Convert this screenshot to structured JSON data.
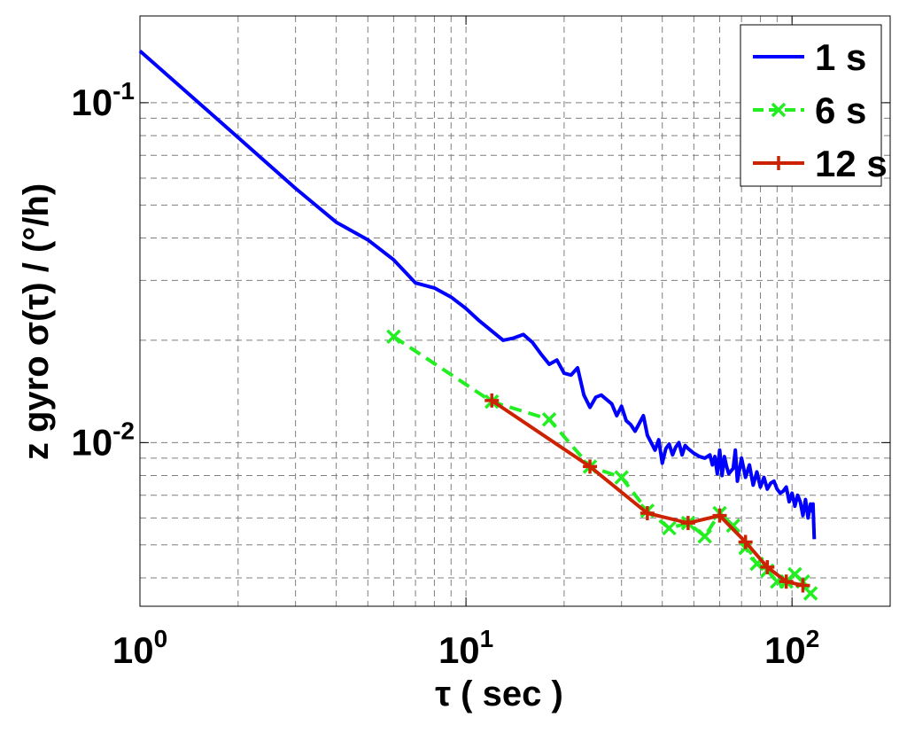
{
  "chart_data": {
    "type": "line",
    "xlabel": "τ ( sec )",
    "ylabel": "z gyro σ(τ) / (°/h)",
    "x_scale": "log",
    "y_scale": "log",
    "xlim": [
      1,
      200
    ],
    "ylim": [
      0.0033,
      0.18
    ],
    "grid": true,
    "grid_style": "dashed",
    "legend_position": "top-right",
    "x_ticks": [
      {
        "base": "10",
        "exp": "0",
        "value": 1
      },
      {
        "base": "10",
        "exp": "1",
        "value": 10
      },
      {
        "base": "10",
        "exp": "2",
        "value": 100
      }
    ],
    "y_ticks": [
      {
        "base": "10",
        "exp": "-2",
        "value": 0.01
      },
      {
        "base": "10",
        "exp": "-1",
        "value": 0.1
      }
    ],
    "series": [
      {
        "name": "1 s",
        "color": "#0000ff",
        "style": "solid",
        "marker": "none",
        "points": [
          [
            1,
            0.142
          ],
          [
            2,
            0.079
          ],
          [
            3,
            0.056
          ],
          [
            4,
            0.0445
          ],
          [
            5,
            0.0395
          ],
          [
            6,
            0.0345
          ],
          [
            7,
            0.0295
          ],
          [
            8,
            0.0285
          ],
          [
            9,
            0.0268
          ],
          [
            10,
            0.0248
          ],
          [
            11,
            0.0228
          ],
          [
            12,
            0.0213
          ],
          [
            13,
            0.02
          ],
          [
            14,
            0.0203
          ],
          [
            15,
            0.0208
          ],
          [
            16,
            0.0197
          ],
          [
            17,
            0.0182
          ],
          [
            18,
            0.017
          ],
          [
            19,
            0.0175
          ],
          [
            20,
            0.016
          ],
          [
            21,
            0.0158
          ],
          [
            22,
            0.0166
          ],
          [
            23,
            0.0138
          ],
          [
            24,
            0.0127
          ],
          [
            25,
            0.0136
          ],
          [
            26,
            0.0138
          ],
          [
            28,
            0.013
          ],
          [
            29,
            0.012
          ],
          [
            30,
            0.0128
          ],
          [
            31,
            0.0116
          ],
          [
            32,
            0.0113
          ],
          [
            33,
            0.0108
          ],
          [
            35,
            0.012
          ],
          [
            36,
            0.0105
          ],
          [
            37,
            0.01
          ],
          [
            38,
            0.0095
          ],
          [
            39,
            0.0102
          ],
          [
            40,
            0.0087
          ],
          [
            41,
            0.0096
          ],
          [
            42,
            0.0099
          ],
          [
            43,
            0.0092
          ],
          [
            44,
            0.0097
          ],
          [
            45,
            0.01
          ],
          [
            46,
            0.0092
          ],
          [
            47,
            0.0098
          ],
          [
            48,
            0.0096
          ],
          [
            50,
            0.0093
          ],
          [
            52,
            0.0091
          ],
          [
            54,
            0.009
          ],
          [
            56,
            0.0092
          ],
          [
            57,
            0.0086
          ],
          [
            58,
            0.0091
          ],
          [
            59,
            0.0081
          ],
          [
            60,
            0.0095
          ],
          [
            61,
            0.008
          ],
          [
            62,
            0.0091
          ],
          [
            63,
            0.0085
          ],
          [
            64,
            0.0081
          ],
          [
            66,
            0.0084
          ],
          [
            67,
            0.0095
          ],
          [
            68,
            0.0077
          ],
          [
            70,
            0.009
          ],
          [
            72,
            0.0079
          ],
          [
            74,
            0.0086
          ],
          [
            76,
            0.0075
          ],
          [
            78,
            0.0082
          ],
          [
            80,
            0.0074
          ],
          [
            82,
            0.0079
          ],
          [
            84,
            0.0073
          ],
          [
            86,
            0.0076
          ],
          [
            88,
            0.0077
          ],
          [
            90,
            0.0073
          ],
          [
            92,
            0.0071
          ],
          [
            94,
            0.0072
          ],
          [
            96,
            0.0074
          ],
          [
            98,
            0.0067
          ],
          [
            100,
            0.0071
          ],
          [
            102,
            0.0065
          ],
          [
            104,
            0.007
          ],
          [
            106,
            0.0067
          ],
          [
            108,
            0.0061
          ],
          [
            110,
            0.0068
          ],
          [
            112,
            0.006
          ],
          [
            114,
            0.0066
          ],
          [
            115,
            0.0063
          ],
          [
            116,
            0.0066
          ],
          [
            117,
            0.0052
          ]
        ]
      },
      {
        "name": "6 s",
        "color": "#22ee22",
        "style": "dashed",
        "marker": "x",
        "points": [
          [
            6,
            0.0205
          ],
          [
            12,
            0.0132
          ],
          [
            18,
            0.0117
          ],
          [
            24,
            0.0085
          ],
          [
            30,
            0.0079
          ],
          [
            36,
            0.0063
          ],
          [
            42,
            0.0056
          ],
          [
            48,
            0.0058
          ],
          [
            54,
            0.0053
          ],
          [
            60,
            0.0062
          ],
          [
            66,
            0.0057
          ],
          [
            72,
            0.0049
          ],
          [
            78,
            0.0044
          ],
          [
            84,
            0.0042
          ],
          [
            90,
            0.0039
          ],
          [
            96,
            0.0039
          ],
          [
            102,
            0.0041
          ],
          [
            108,
            0.0039
          ],
          [
            114,
            0.0036
          ]
        ]
      },
      {
        "name": "12 s",
        "color": "#cc2200",
        "style": "solid",
        "marker": "+",
        "points": [
          [
            12,
            0.0133
          ],
          [
            24,
            0.0085
          ],
          [
            36,
            0.0062
          ],
          [
            48,
            0.0058
          ],
          [
            60,
            0.0061
          ],
          [
            72,
            0.0051
          ],
          [
            84,
            0.0043
          ],
          [
            96,
            0.0039
          ],
          [
            108,
            0.0038
          ]
        ]
      }
    ]
  }
}
